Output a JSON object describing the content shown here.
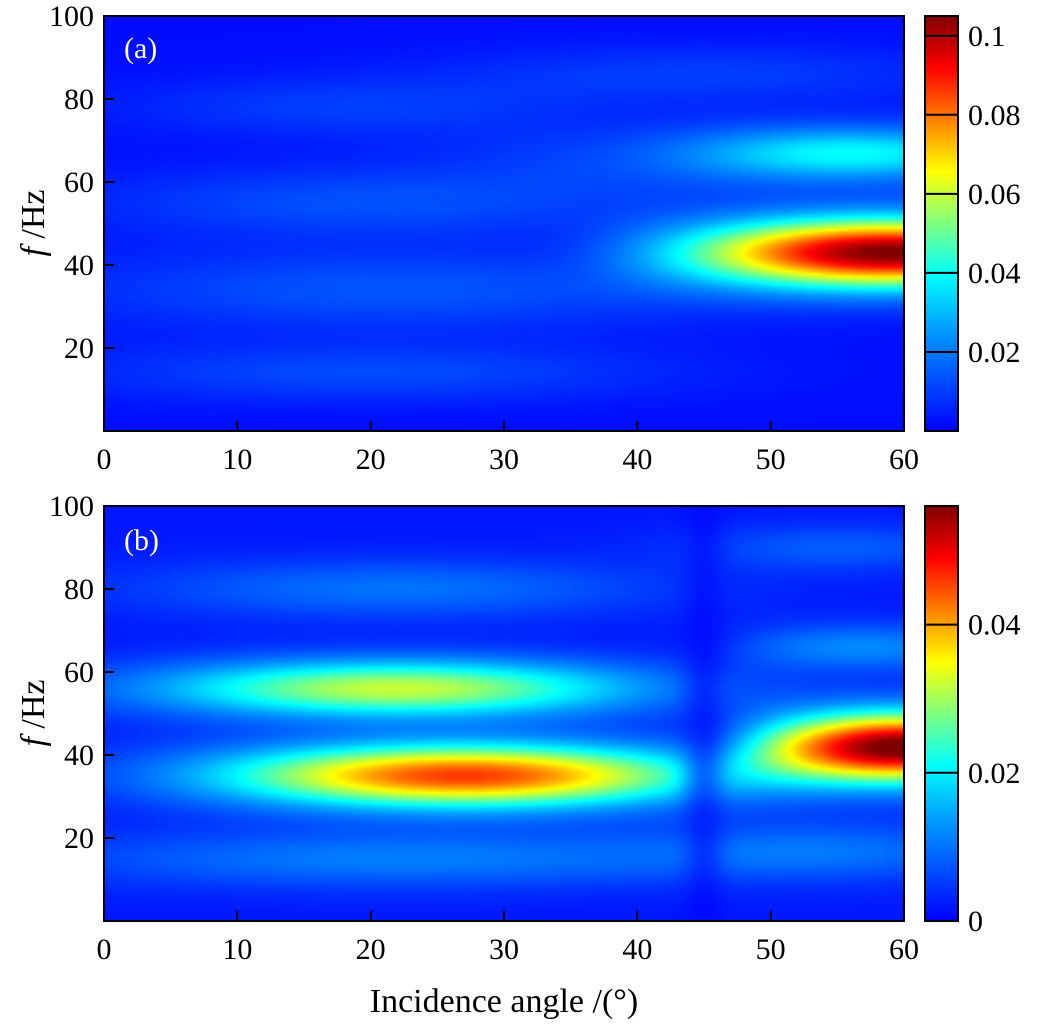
{
  "chart_data": [
    {
      "type": "heatmap",
      "panel_label": "(a)",
      "xlabel": "",
      "ylabel": {
        "italic": "f",
        "rest": " /Hz"
      },
      "xlim": [
        0,
        60
      ],
      "ylim": [
        0,
        100
      ],
      "x_ticks": [
        0,
        10,
        20,
        30,
        40,
        50,
        60
      ],
      "y_ticks": [
        20,
        40,
        60,
        80,
        100
      ],
      "colorbar": {
        "range": [
          0,
          0.105
        ],
        "ticks": [
          0.02,
          0.04,
          0.06,
          0.08,
          0.1
        ],
        "tick_labels": [
          "0.02",
          "0.04",
          "0.06",
          "0.08",
          "0.1"
        ],
        "colormap": "jet"
      },
      "features": [
        {
          "x": 58,
          "y": 43,
          "value": 0.103
        },
        {
          "x": 57,
          "y": 67,
          "value": 0.04
        },
        {
          "x": 25,
          "y": 34,
          "value": 0.014
        },
        {
          "x": 18,
          "y": 55,
          "value": 0.013
        },
        {
          "x": 20,
          "y": 14,
          "value": 0.01
        }
      ]
    },
    {
      "type": "heatmap",
      "panel_label": "(b)",
      "xlabel": "Incidence angle /(°)",
      "ylabel": {
        "italic": "f",
        "rest": " /Hz"
      },
      "xlim": [
        0,
        60
      ],
      "ylim": [
        0,
        100
      ],
      "x_ticks": [
        0,
        10,
        20,
        30,
        40,
        50,
        60
      ],
      "y_ticks": [
        20,
        40,
        60,
        80,
        100
      ],
      "colorbar": {
        "range": [
          0,
          0.056
        ],
        "ticks": [
          0,
          0.02,
          0.04
        ],
        "tick_labels": [
          "0",
          "0.02",
          "0.04"
        ],
        "colormap": "jet"
      },
      "features": [
        {
          "x": 26,
          "y": 35,
          "value": 0.045
        },
        {
          "x": 58,
          "y": 42,
          "value": 0.055
        },
        {
          "x": 22,
          "y": 56,
          "value": 0.034
        }
      ]
    }
  ],
  "colors": {
    "background": "#ffffff",
    "axis": "#000000",
    "panel_label": "#ffffff"
  }
}
